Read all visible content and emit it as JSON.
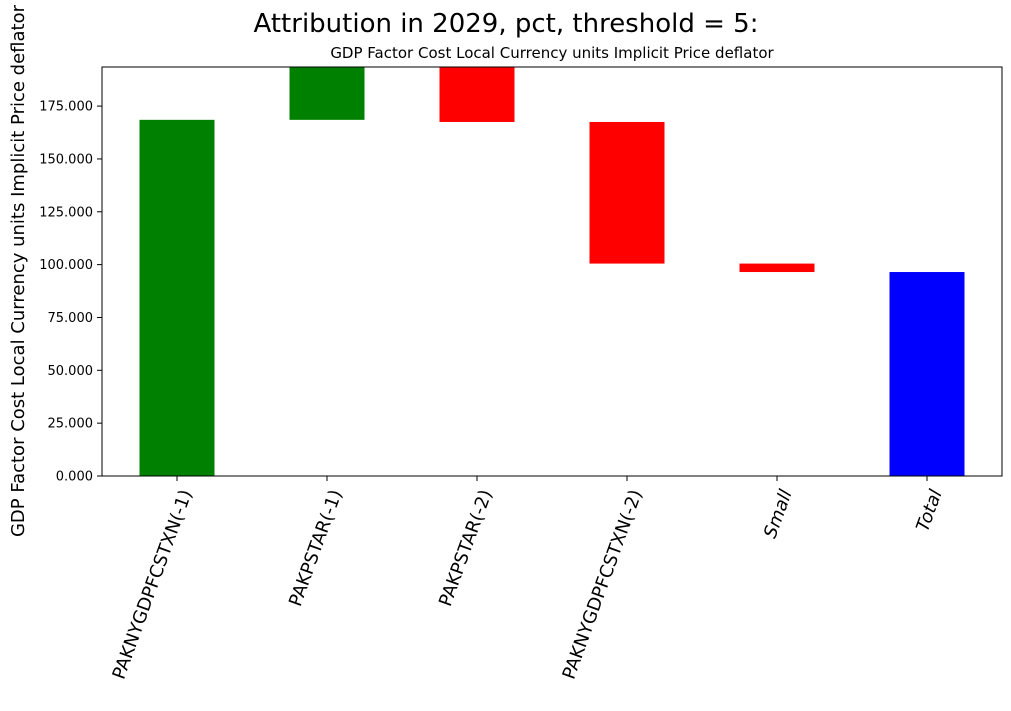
{
  "figure": {
    "suptitle": "Attribution in 2029, pct, threshold = 5:"
  },
  "chart_data": {
    "type": "bar",
    "title": "GDP Factor Cost Local Currency units Implicit Price deflator",
    "xlabel": "",
    "ylabel": "GDP Factor Cost Local Currency units Implicit Price deflator",
    "ylim": [
      0,
      193.5
    ],
    "yticks": [
      0,
      25,
      50,
      75,
      100,
      125,
      150,
      175
    ],
    "ytick_labels": [
      "0.000",
      "25.000",
      "50.000",
      "75.000",
      "100.000",
      "125.000",
      "150.000",
      "175.000"
    ],
    "categories": [
      "PAKNYGDPFCSTXN(-1)",
      "PAKPSTAR(-1)",
      "PAKPSTAR(-2)",
      "PAKNYGDPFCSTXN(-2)",
      "Small",
      "Total"
    ],
    "bars": [
      {
        "bottom": 0,
        "top": 168.5,
        "color": "#008000"
      },
      {
        "bottom": 168.5,
        "top": 193.5,
        "color": "#008000"
      },
      {
        "bottom": 167.5,
        "top": 193.5,
        "color": "#ff0000"
      },
      {
        "bottom": 100.5,
        "top": 167.5,
        "color": "#ff0000"
      },
      {
        "bottom": 96.5,
        "top": 100.5,
        "color": "#ff0000"
      },
      {
        "bottom": 0,
        "top": 96.5,
        "color": "#0000ff"
      }
    ],
    "grid": false,
    "legend": "none"
  }
}
